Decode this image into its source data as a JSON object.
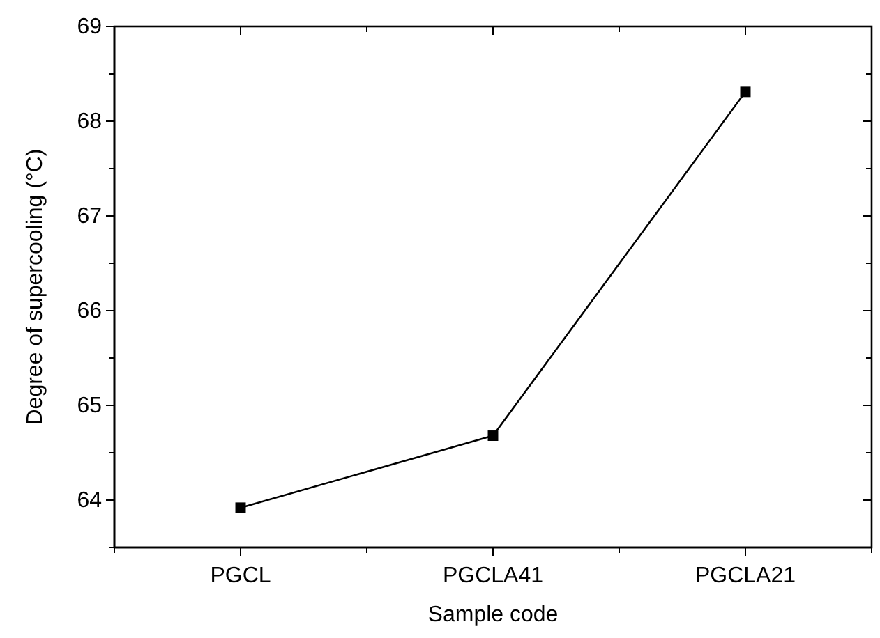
{
  "chart_data": {
    "type": "line",
    "xlabel": "Sample code",
    "ylabel": "Degree of supercooling (°C)",
    "categories": [
      "PGCL",
      "PGCLA41",
      "PGCLA21"
    ],
    "series": [
      {
        "color": "#000000",
        "values": [
          63.92,
          64.68,
          68.31
        ]
      }
    ],
    "ylim": [
      63.5,
      69
    ],
    "yticks": [
      64,
      65,
      66,
      67,
      68,
      69
    ],
    "marker": "square",
    "line_style": "solid"
  }
}
